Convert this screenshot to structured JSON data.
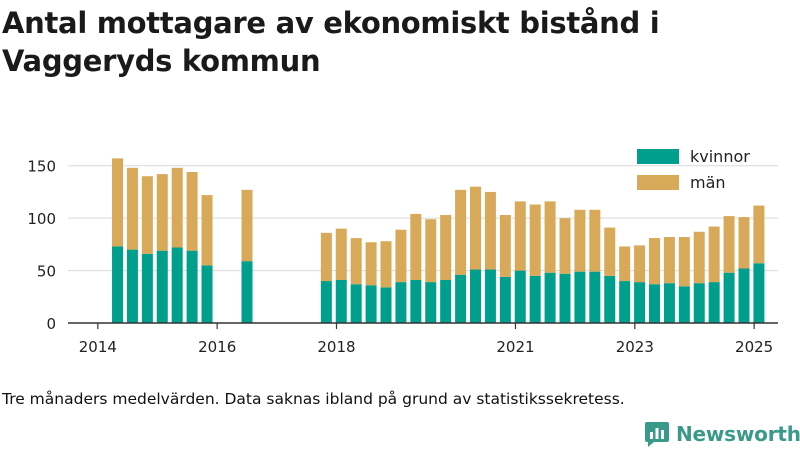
{
  "title": "Antal mottagare av ekonomiskt bistånd i Vaggeryds kommun",
  "footnote": "Tre månaders medelvärden. Data saknas ibland på grund av statistikssekretess.",
  "brand": {
    "name": "Newsworthy",
    "icon": "newsworthy-logo-icon",
    "color": "#3a9a8a"
  },
  "colors": {
    "kvinnor": "#009e8c",
    "man": "#d9a95a",
    "axis": "#333333",
    "grid": "#d9d9d9"
  },
  "chart_data": {
    "type": "bar",
    "stacked": true,
    "grid": "horizontal",
    "legend_position": "top-right",
    "xlim": [
      2013.5,
      2025.4
    ],
    "ylim": [
      0,
      165
    ],
    "y_ticks": [
      0,
      50,
      100,
      150
    ],
    "x_ticks": [
      2014,
      2016,
      2018,
      2021,
      2023,
      2025
    ],
    "x_tick_labels": [
      "2014",
      "2016",
      "2018",
      "2021",
      "2023",
      "2025"
    ],
    "legend": [
      "kvinnor",
      "män"
    ],
    "x": [
      2014.33,
      2014.58,
      2014.83,
      2015.08,
      2015.33,
      2015.58,
      2015.83,
      2016.5,
      2017.83,
      2018.08,
      2018.33,
      2018.58,
      2018.83,
      2019.08,
      2019.33,
      2019.58,
      2019.83,
      2020.08,
      2020.33,
      2020.58,
      2020.83,
      2021.08,
      2021.33,
      2021.58,
      2021.83,
      2022.08,
      2022.33,
      2022.58,
      2022.83,
      2023.08,
      2023.33,
      2023.58,
      2023.83,
      2024.08,
      2024.33,
      2024.58,
      2024.83,
      2025.08
    ],
    "series": [
      {
        "name": "kvinnor",
        "values": [
          73,
          70,
          66,
          69,
          72,
          69,
          55,
          59,
          40,
          41,
          37,
          36,
          34,
          39,
          41,
          39,
          41,
          46,
          51,
          51,
          44,
          50,
          45,
          48,
          47,
          49,
          49,
          45,
          40,
          39,
          37,
          38,
          35,
          38,
          39,
          48,
          52,
          57
        ]
      },
      {
        "name": "män",
        "values": [
          84,
          78,
          74,
          73,
          76,
          75,
          67,
          68,
          46,
          49,
          44,
          41,
          44,
          50,
          63,
          60,
          62,
          81,
          79,
          74,
          59,
          66,
          68,
          68,
          53,
          59,
          59,
          46,
          33,
          35,
          44,
          44,
          47,
          49,
          53,
          54,
          49,
          55
        ]
      }
    ]
  }
}
